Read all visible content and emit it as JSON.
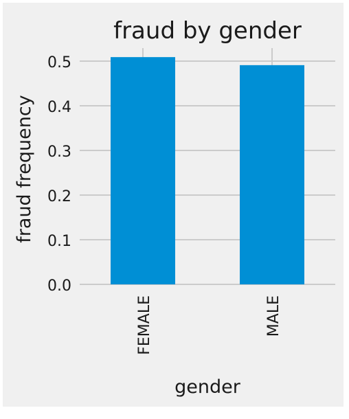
{
  "colors": {
    "figure_background": "#f0f0f0",
    "grid": "#cbcbcb",
    "bar": "#008fd5",
    "text": "#1a1a1a"
  },
  "chart_data": {
    "type": "bar",
    "title": "fraud by gender",
    "xlabel": "gender",
    "ylabel": "fraud frequency",
    "categories": [
      "FEMALE",
      "MALE"
    ],
    "values": [
      0.509,
      0.491
    ],
    "ylim": [
      0,
      0.52
    ],
    "yticks": [
      0.0,
      0.1,
      0.2,
      0.3,
      0.4,
      0.5
    ],
    "ytick_labels": [
      "0.0",
      "0.1",
      "0.2",
      "0.3",
      "0.4",
      "0.5"
    ],
    "grid": true,
    "legend": "none"
  }
}
